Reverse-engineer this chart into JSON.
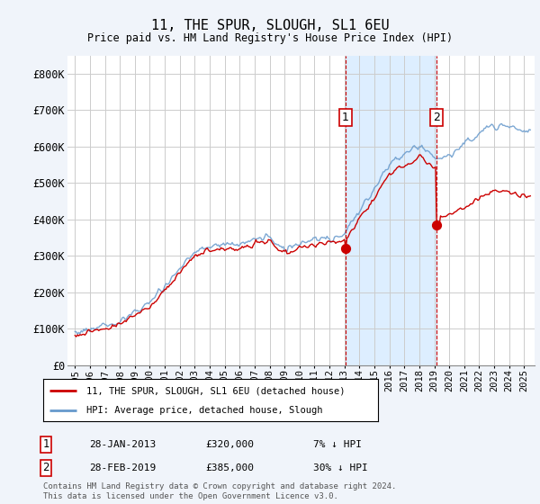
{
  "title": "11, THE SPUR, SLOUGH, SL1 6EU",
  "subtitle": "Price paid vs. HM Land Registry's House Price Index (HPI)",
  "ylim": [
    0,
    850000
  ],
  "yticks": [
    0,
    100000,
    200000,
    300000,
    400000,
    500000,
    600000,
    700000,
    800000
  ],
  "ytick_labels": [
    "£0",
    "£100K",
    "£200K",
    "£300K",
    "£400K",
    "£500K",
    "£600K",
    "£700K",
    "£800K"
  ],
  "hpi_color": "#6699cc",
  "price_color": "#cc0000",
  "marker1_year": 2013.08,
  "marker1_price": 320000,
  "marker1_label": "28-JAN-2013",
  "marker1_amount": "£320,000",
  "marker1_pct": "7% ↓ HPI",
  "marker2_year": 2019.17,
  "marker2_price": 385000,
  "marker2_label": "28-FEB-2019",
  "marker2_amount": "£385,000",
  "marker2_pct": "30% ↓ HPI",
  "legend_line1": "11, THE SPUR, SLOUGH, SL1 6EU (detached house)",
  "legend_line2": "HPI: Average price, detached house, Slough",
  "footnote": "Contains HM Land Registry data © Crown copyright and database right 2024.\nThis data is licensed under the Open Government Licence v3.0.",
  "background_color": "#f0f4fa",
  "plot_bg_color": "#ffffff",
  "highlight_bg": "#ddeeff"
}
